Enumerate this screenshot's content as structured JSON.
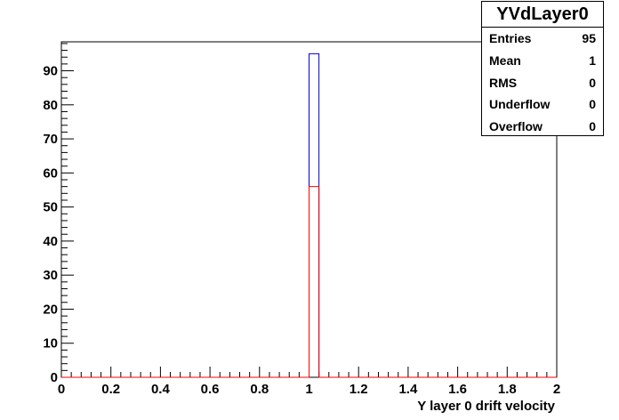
{
  "chart_data": {
    "type": "bar",
    "title": "",
    "xlabel": "Y layer 0 drift velocity",
    "ylabel": "",
    "xlim": [
      0,
      2
    ],
    "ylim": [
      0,
      98.5
    ],
    "x_ticks": [
      "0",
      "0.2",
      "0.4",
      "0.6",
      "0.8",
      "1",
      "1.2",
      "1.4",
      "1.6",
      "1.8",
      "2"
    ],
    "y_ticks": [
      "0",
      "10",
      "20",
      "30",
      "40",
      "50",
      "60",
      "70",
      "80",
      "90"
    ],
    "n_bins": 50,
    "series": [
      {
        "color": "#0000cc",
        "bins": [
          {
            "x0": 1.0,
            "x1": 1.04,
            "value": 95
          }
        ]
      },
      {
        "color": "#ff0000",
        "bins": [
          {
            "x0": 1.0,
            "x1": 1.04,
            "value": 56
          }
        ]
      }
    ],
    "grid": false,
    "legend": "top-right"
  },
  "stats": {
    "title": "YVdLayer0",
    "rows": [
      {
        "label": "Entries",
        "value": "95"
      },
      {
        "label": "Mean",
        "value": "1"
      },
      {
        "label": "RMS",
        "value": "0"
      },
      {
        "label": "Underflow",
        "value": "0"
      },
      {
        "label": "Overflow",
        "value": "0"
      }
    ]
  }
}
